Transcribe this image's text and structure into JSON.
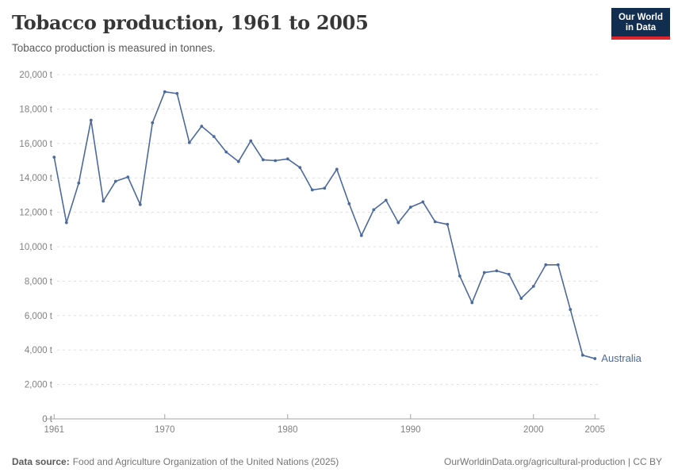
{
  "header": {
    "title": "Tobacco production, 1961 to 2005",
    "subtitle": "Tobacco production is measured in tonnes.",
    "logo": {
      "line1": "Our World",
      "line2": "in Data"
    }
  },
  "chart_data": {
    "type": "line",
    "title": "Tobacco production, 1961 to 2005",
    "ylabel": "",
    "xlabel": "",
    "unit": "t",
    "xlim": [
      1961,
      2005
    ],
    "ylim": [
      0,
      20000
    ],
    "grid": "horizontal-dashed",
    "legend_position": "end-of-line-label",
    "xticks": [
      1961,
      1970,
      1980,
      1990,
      2000,
      2005
    ],
    "yticks": {
      "values": [
        0,
        2000,
        4000,
        6000,
        8000,
        10000,
        12000,
        14000,
        16000,
        18000,
        20000
      ],
      "labels": [
        "0 t",
        "2,000 t",
        "4,000 t",
        "6,000 t",
        "8,000 t",
        "10,000 t",
        "12,000 t",
        "14,000 t",
        "16,000 t",
        "18,000 t",
        "20,000 t"
      ]
    },
    "x": [
      1961,
      1962,
      1963,
      1964,
      1965,
      1966,
      1967,
      1968,
      1969,
      1970,
      1971,
      1972,
      1973,
      1974,
      1975,
      1976,
      1977,
      1978,
      1979,
      1980,
      1981,
      1982,
      1983,
      1984,
      1985,
      1986,
      1987,
      1988,
      1989,
      1990,
      1991,
      1992,
      1993,
      1994,
      1995,
      1996,
      1997,
      1998,
      1999,
      2000,
      2001,
      2002,
      2003,
      2004,
      2005
    ],
    "series": [
      {
        "name": "Australia",
        "color": "#4c6a9c",
        "values": [
          15200,
          11400,
          13700,
          17350,
          12650,
          13800,
          14050,
          12450,
          17200,
          19000,
          18900,
          16050,
          17000,
          16400,
          15500,
          14950,
          16150,
          15050,
          15000,
          15100,
          14600,
          13300,
          13400,
          14500,
          12500,
          10650,
          12150,
          12700,
          11400,
          12300,
          12600,
          11450,
          11300,
          8300,
          6750,
          8500,
          8600,
          8400,
          7000,
          7700,
          8950,
          8950,
          6350,
          3700,
          3500
        ]
      }
    ]
  },
  "footer": {
    "source_label": "Data source:",
    "source_text": "Food and Agriculture Organization of the United Nations (2025)",
    "credit": "OurWorldinData.org/agricultural-production | CC BY"
  }
}
